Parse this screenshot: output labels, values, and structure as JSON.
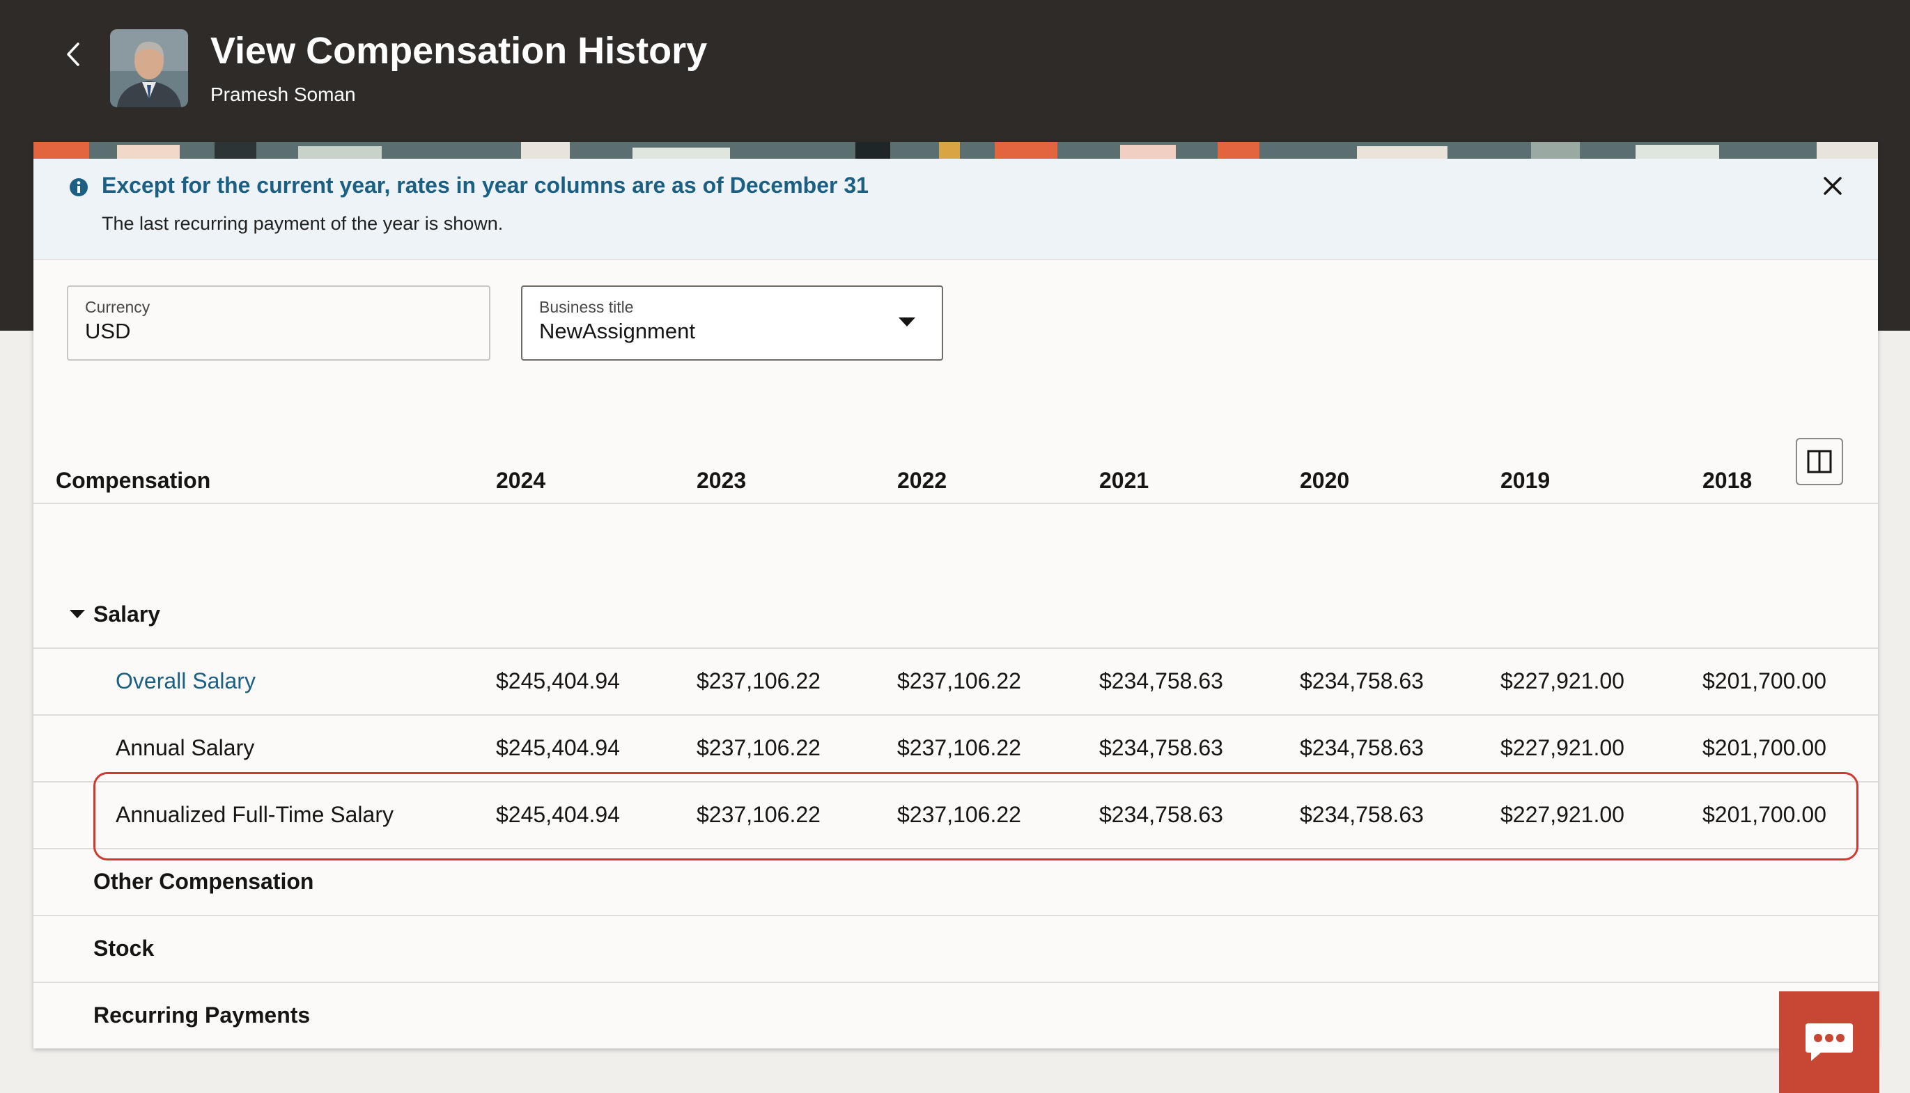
{
  "header": {
    "title": "View Compensation History",
    "person_name": "Pramesh Soman"
  },
  "message": {
    "title": "Except for the current year, rates in year columns are as of December 31",
    "text": "The last recurring payment of the year is shown."
  },
  "filters": {
    "currency": {
      "label": "Currency",
      "value": "USD"
    },
    "business_title": {
      "label": "Business title",
      "value": "NewAssignment"
    }
  },
  "table": {
    "columns": [
      "Compensation",
      "2024",
      "2023",
      "2022",
      "2021",
      "2020",
      "2019",
      "2018"
    ],
    "salary_group": "Salary",
    "rows": [
      {
        "label": "Overall Salary",
        "values": [
          "$245,404.94",
          "$237,106.22",
          "$237,106.22",
          "$234,758.63",
          "$234,758.63",
          "$227,921.00",
          "$201,700.00"
        ]
      },
      {
        "label": "Annual Salary",
        "values": [
          "$245,404.94",
          "$237,106.22",
          "$237,106.22",
          "$234,758.63",
          "$234,758.63",
          "$227,921.00",
          "$201,700.00"
        ]
      },
      {
        "label": "Annualized Full-Time Salary",
        "values": [
          "$245,404.94",
          "$237,106.22",
          "$237,106.22",
          "$234,758.63",
          "$234,758.63",
          "$227,921.00",
          "$201,700.00"
        ]
      }
    ],
    "other_groups": [
      "Other Compensation",
      "Stock",
      "Recurring Payments"
    ]
  },
  "colors": {
    "header_bg": "#2f2b28",
    "link": "#1b5f82",
    "highlight": "#d0392f",
    "chat_button": "#c74634"
  },
  "icons": [
    "chevron-left-icon",
    "info-icon",
    "close-icon",
    "columns-icon",
    "caret-down-icon",
    "chat-icon"
  ]
}
